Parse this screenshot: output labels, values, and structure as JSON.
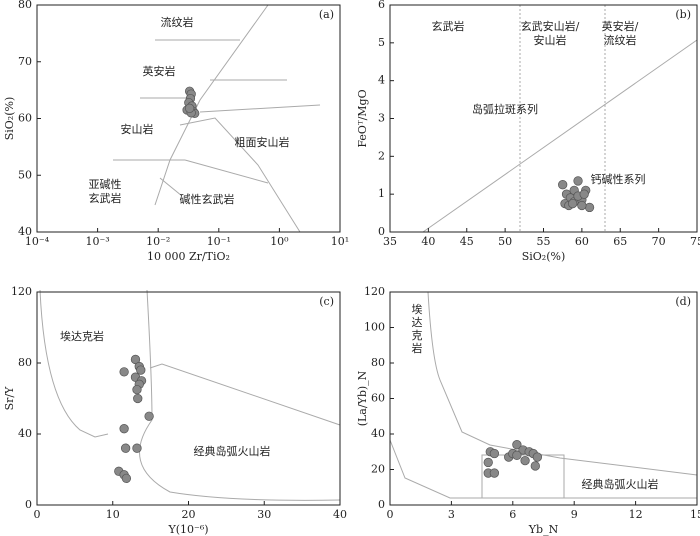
{
  "chart_data": [
    {
      "type": "scatter",
      "title": "(a)",
      "x_label": "10 000 Zr/TiO₂",
      "y_label": "SiO₂(%)",
      "xlog": true,
      "xlim": [
        0.0001,
        10
      ],
      "xticks": [
        {
          "value": 0.0001,
          "label": "10⁻⁴"
        },
        {
          "value": 0.001,
          "label": "10⁻³"
        },
        {
          "value": 0.01,
          "label": "10⁻²"
        },
        {
          "value": 0.1,
          "label": "10⁻¹"
        },
        {
          "value": 1,
          "label": "10⁰"
        },
        {
          "value": 10,
          "label": "10¹"
        }
      ],
      "ylim": [
        40,
        80
      ],
      "yticks": [
        40,
        50,
        60,
        70,
        80
      ],
      "color": "#888888",
      "x": [
        0.033,
        0.035,
        0.034,
        0.032,
        0.036,
        0.03,
        0.038,
        0.04,
        0.035,
        0.033
      ],
      "values": [
        64.8,
        64.3,
        63.5,
        62.8,
        62.2,
        61.5,
        61.2,
        60.9,
        61.0,
        61.8
      ],
      "annotations": [
        [
          "流纹岩"
        ],
        [
          "英安岩"
        ],
        [
          "安山岩"
        ],
        [
          "粗面安山岩"
        ],
        [
          "亚碱性",
          "玄武岩"
        ],
        [
          "碱性玄武岩"
        ]
      ]
    },
    {
      "type": "scatter",
      "title": "(b)",
      "x_label": "SiO₂(%)",
      "y_label": "FeOᵀ/MgO",
      "xlim": [
        35,
        75
      ],
      "xticks": [
        35,
        40,
        45,
        50,
        55,
        60,
        65,
        70,
        75
      ],
      "ylim": [
        0,
        6
      ],
      "yticks": [
        0,
        1,
        2,
        3,
        4,
        5,
        6
      ],
      "color": "#888888",
      "x": [
        57.5,
        59.5,
        58.0,
        59.0,
        60.5,
        58.5,
        59.0,
        60.0,
        57.8,
        58.3,
        61.0,
        60.0,
        59.5,
        58.8,
        60.3
      ],
      "values": [
        1.25,
        1.35,
        1.0,
        1.1,
        1.1,
        0.9,
        0.8,
        0.85,
        0.75,
        0.7,
        0.65,
        0.7,
        0.95,
        0.75,
        1.0
      ],
      "annotations": [
        [
          "玄武岩"
        ],
        [
          "玄武安山岩/",
          "安山岩"
        ],
        [
          "英安岩/",
          "流纹岩"
        ],
        [
          "岛弧拉斑系列"
        ],
        [
          "钙碱性系列"
        ]
      ]
    },
    {
      "type": "scatter",
      "title": "(c)",
      "x_label": "Y(10⁻⁶)",
      "y_label": "Sr/Y",
      "xlim": [
        0,
        40
      ],
      "xticks": [
        0,
        10,
        20,
        30,
        40
      ],
      "ylim": [
        0,
        120
      ],
      "yticks": [
        0,
        40,
        80,
        120
      ],
      "color": "#888888",
      "x": [
        11.5,
        13.0,
        13.5,
        13.7,
        13.0,
        13.8,
        13.5,
        13.2,
        13.3,
        14.8,
        11.5,
        11.7,
        13.2,
        10.8,
        11.5,
        11.8
      ],
      "values": [
        75,
        82,
        78,
        76,
        72,
        70,
        68,
        65,
        60,
        50,
        43,
        32,
        32,
        19,
        17,
        15
      ],
      "annotations": [
        [
          "埃达克岩"
        ],
        [
          "经典岛弧火山岩"
        ]
      ]
    },
    {
      "type": "scatter",
      "title": "(d)",
      "x_label": "Yb_N",
      "y_label": "(La/Yb)_N",
      "xlim": [
        0,
        15
      ],
      "xticks": [
        0,
        3,
        6,
        9,
        12,
        15
      ],
      "ylim": [
        0,
        120
      ],
      "yticks": [
        0,
        20,
        40,
        60,
        80,
        100,
        120
      ],
      "color": "#888888",
      "x": [
        4.9,
        5.1,
        4.8,
        4.8,
        5.1,
        5.8,
        6.0,
        6.2,
        6.5,
        6.8,
        7.0,
        7.2,
        7.1,
        6.6,
        6.2
      ],
      "values": [
        30,
        29,
        24,
        18,
        18,
        27,
        29,
        34,
        31,
        30,
        29,
        27,
        22,
        25,
        28
      ],
      "annotations": [
        [
          "埃",
          "达",
          "克",
          "岩"
        ],
        [
          "经典岛弧火山岩"
        ]
      ]
    }
  ]
}
